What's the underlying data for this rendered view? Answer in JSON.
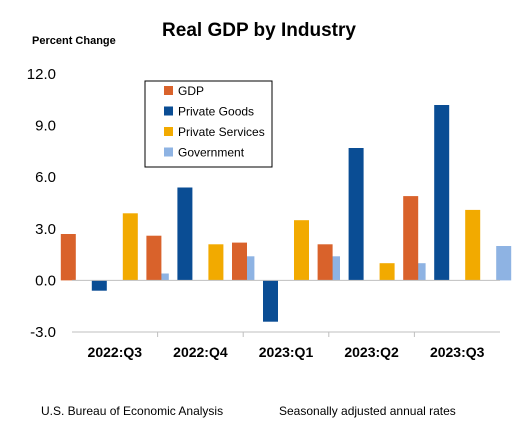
{
  "chart_data": {
    "type": "bar",
    "title": "Real GDP by Industry",
    "ylabel": "Percent Change",
    "ylim": [
      -3.0,
      12.0
    ],
    "yticks": [
      "12.0",
      "9.0",
      "6.0",
      "3.0",
      "0.0",
      "-3.0"
    ],
    "categories": [
      "2022:Q3",
      "2022:Q4",
      "2023:Q1",
      "2023:Q2",
      "2023:Q3"
    ],
    "series": [
      {
        "name": "GDP",
        "color": "#d9622b",
        "values": [
          2.7,
          2.6,
          2.2,
          2.1,
          4.9
        ]
      },
      {
        "name": "Private Goods",
        "color": "#0a4d94",
        "values": [
          -0.6,
          5.4,
          -2.4,
          7.7,
          10.2
        ]
      },
      {
        "name": "Private Services",
        "color": "#f2aa00",
        "values": [
          3.9,
          2.1,
          3.5,
          1.0,
          4.1
        ]
      },
      {
        "name": "Government",
        "color": "#8eb3e3",
        "values": [
          0.4,
          1.4,
          1.4,
          1.0,
          2.0
        ]
      }
    ],
    "grid": false,
    "legend_position": "top-left"
  },
  "footer": {
    "source": "U.S. Bureau of Economic Analysis",
    "note": "Seasonally adjusted annual rates"
  }
}
